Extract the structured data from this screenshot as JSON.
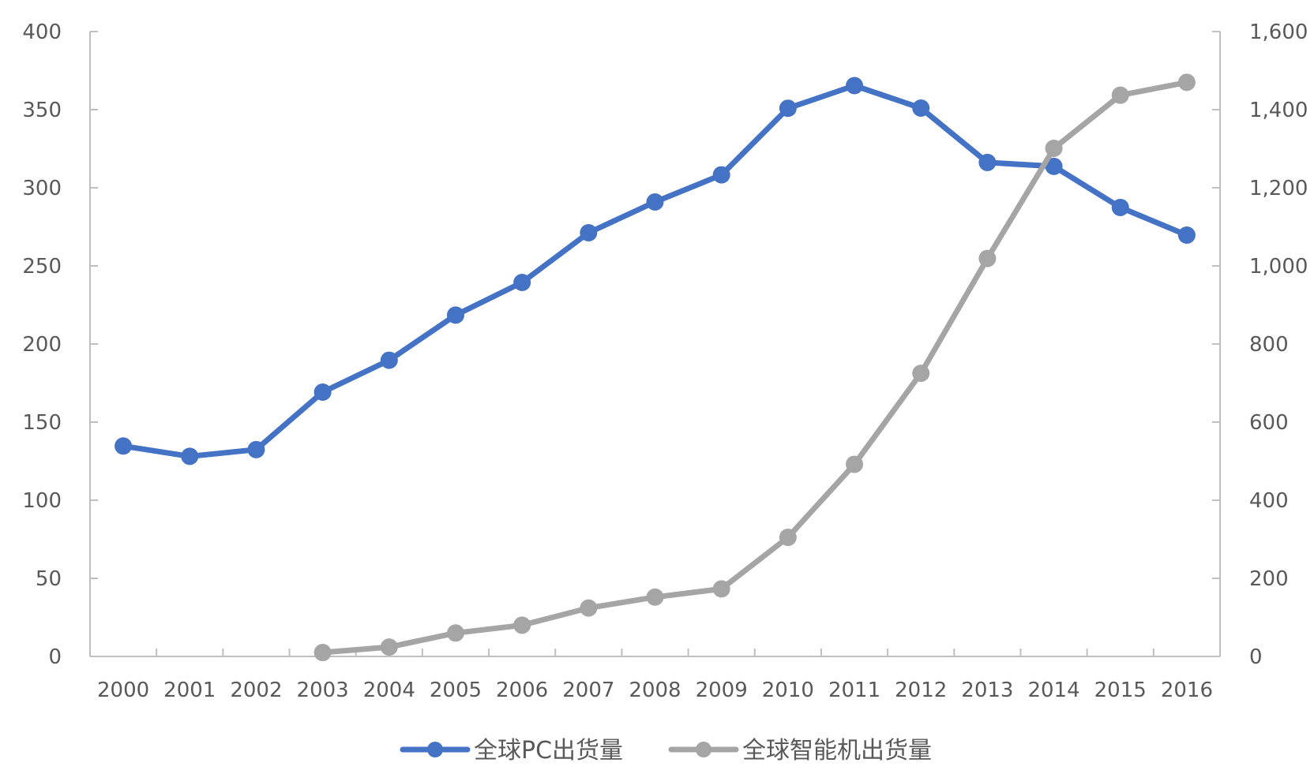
{
  "chart_data": {
    "type": "line",
    "title": "",
    "xlabel": "",
    "ylabel": "",
    "ylabel_right": "",
    "x": [
      "2000",
      "2001",
      "2002",
      "2003",
      "2004",
      "2005",
      "2006",
      "2007",
      "2008",
      "2009",
      "2010",
      "2011",
      "2012",
      "2013",
      "2014",
      "2015",
      "2016"
    ],
    "ylim": [
      0,
      400
    ],
    "ylim_right": [
      0,
      1600
    ],
    "y_ticks": [
      "0",
      "50",
      "100",
      "150",
      "200",
      "250",
      "300",
      "350",
      "400"
    ],
    "y_ticks_right": [
      "0",
      "200",
      "400",
      "600",
      "800",
      "1,000",
      "1,200",
      "1,400",
      "1,600"
    ],
    "grid": false,
    "legend_position": "bottom",
    "series": [
      {
        "name": "全球PC出货量",
        "axis": "left",
        "color": "#4472c4",
        "values": [
          134.7,
          128.1,
          132.4,
          169.2,
          189.6,
          218.5,
          239.4,
          271.2,
          290.9,
          308.3,
          350.9,
          365.4,
          351.0,
          316.2,
          313.7,
          287.4,
          269.7
        ]
      },
      {
        "name": "全球智能机出货量",
        "axis": "right",
        "color": "#a5a5a5",
        "values": [
          null,
          null,
          null,
          10,
          24,
          60,
          80,
          124,
          152,
          173,
          305,
          492,
          725,
          1019,
          1301,
          1437,
          1470
        ]
      }
    ]
  }
}
